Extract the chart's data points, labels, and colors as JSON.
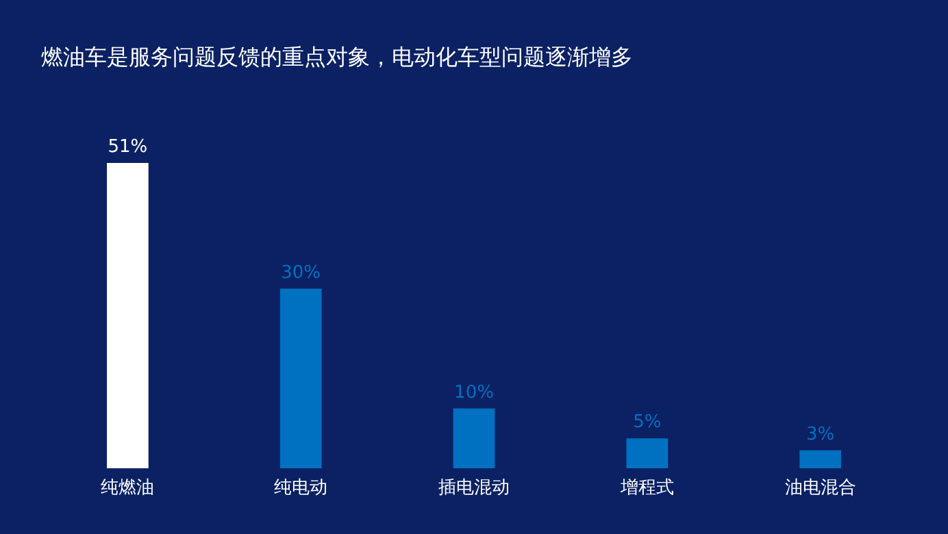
{
  "chart_data": {
    "type": "bar",
    "title": "燃油车是服务问题反馈的重点对象，电动化车型问题逐渐增多",
    "categories": [
      "纯燃油",
      "纯电动",
      "插电混动",
      "增程式",
      "油电混合"
    ],
    "values": [
      51,
      30,
      10,
      5,
      3
    ],
    "colors": [
      "#ffffff",
      "#0070c0",
      "#0070c0",
      "#0070c0",
      "#0070c0"
    ],
    "value_labels": [
      "51%",
      "30%",
      "10%",
      "5%",
      "3%"
    ]
  }
}
